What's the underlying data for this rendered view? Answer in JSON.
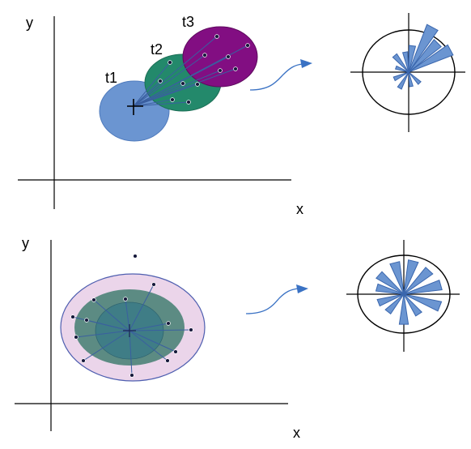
{
  "top_panel": {
    "y_label": "y",
    "x_label": "x",
    "ellipses": [
      {
        "label": "t1",
        "fill": "#6b95d1",
        "stroke": "#4f7bbd"
      },
      {
        "label": "t2",
        "fill": "#23896b",
        "stroke": "#1b6e55"
      },
      {
        "label": "t3",
        "fill": "#820e82",
        "stroke": "#5e0a5e"
      }
    ]
  },
  "bottom_panel": {
    "y_label": "y",
    "x_label": "x",
    "ellipse_colors": {
      "outer": "#ebd5ea",
      "outer_stroke": "#4f5fb0",
      "middle": "#5c8b83",
      "inner": "#3f7d86"
    }
  },
  "colors": {
    "arrow": "#3a72c4",
    "rose": "#6b95d1",
    "rose_stroke": "#3a66ad",
    "ray": "#3a5fa0",
    "point": "#15183a"
  }
}
